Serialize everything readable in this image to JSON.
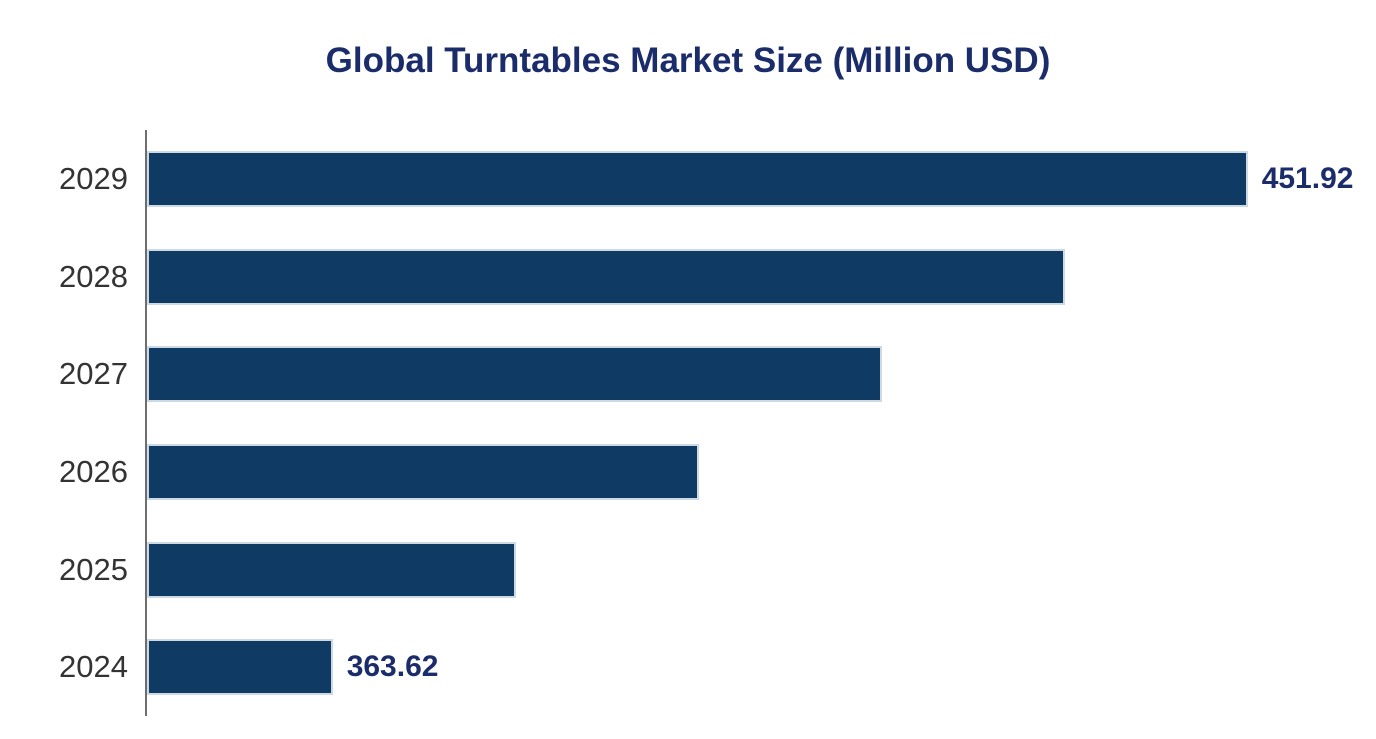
{
  "chart_data": {
    "type": "bar",
    "orientation": "horizontal",
    "title": "Global Turntables Market Size (Million USD)",
    "xlabel": "",
    "ylabel": "",
    "categories": [
      "2029",
      "2028",
      "2027",
      "2026",
      "2025",
      "2024"
    ],
    "values": [
      451.92,
      434.26,
      416.6,
      398.94,
      381.28,
      363.62
    ],
    "data_labels": [
      "451.92",
      "",
      "",
      "",
      "",
      "363.62"
    ],
    "labeled_points_note": "Only first and last bars show data labels; middle values estimated from bar lengths (linear steps of ~17.66)",
    "xlim": [
      345.7,
      464.3
    ],
    "grid": false,
    "legend": false,
    "colors": {
      "bar_fill": "#0e3a63",
      "bar_border": "#cdd9e3",
      "title_text": "#1b2c6b",
      "value_label_text": "#1b2c6b",
      "category_label_text": "#333333",
      "axis_line": "#6e6e6e",
      "background": "#ffffff"
    }
  }
}
